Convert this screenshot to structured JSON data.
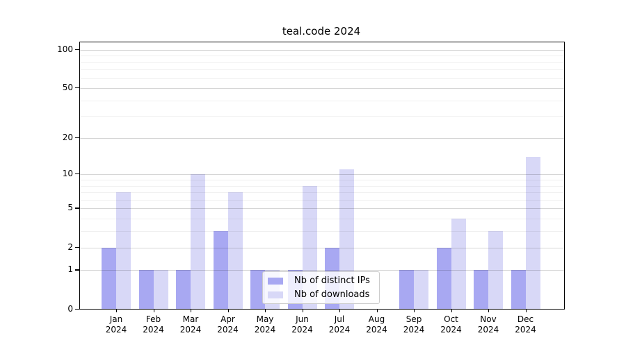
{
  "title": "teal.code 2024",
  "legend": {
    "items": [
      {
        "label": "Nb of distinct IPs",
        "color": "#a8a8f2"
      },
      {
        "label": "Nb of downloads",
        "color": "#d8d8f7"
      }
    ]
  },
  "chart_data": {
    "type": "bar",
    "title": "teal.code 2024",
    "categories": [
      "Jan 2024",
      "Feb 2024",
      "Mar 2024",
      "Apr 2024",
      "May 2024",
      "Jun 2024",
      "Jul 2024",
      "Aug 2024",
      "Sep 2024",
      "Oct 2024",
      "Nov 2024",
      "Dec 2024"
    ],
    "series": [
      {
        "name": "Nb of distinct IPs",
        "color": "#a8a8f2",
        "values": [
          2,
          1,
          1,
          3,
          1,
          1,
          2,
          0,
          1,
          2,
          1,
          1
        ]
      },
      {
        "name": "Nb of downloads",
        "color": "#d8d8f7",
        "values": [
          7,
          1,
          10,
          7,
          1,
          8,
          11,
          0,
          1,
          4,
          3,
          14
        ]
      }
    ],
    "xlabel": "",
    "ylabel": "",
    "yscale": "log1p",
    "yticks": [
      0,
      1,
      2,
      5,
      10,
      20,
      50,
      100
    ],
    "minor_grid_values": [
      3,
      4,
      6,
      7,
      8,
      9,
      30,
      40,
      60,
      70,
      80,
      90
    ],
    "ylim": [
      0,
      113
    ],
    "grid": true,
    "legend_position": "lower center"
  }
}
